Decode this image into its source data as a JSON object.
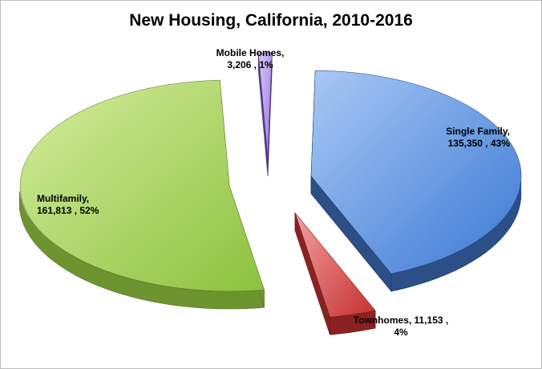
{
  "chart_data": {
    "type": "pie",
    "title": "New Housing, California, 2010-2016",
    "slices": [
      {
        "name": "Single Family",
        "value": 135350,
        "percent": 43,
        "label_lines": [
          "Single Family,",
          "135,350 , 43%"
        ],
        "color": "#6a9be6"
      },
      {
        "name": "Townhomes",
        "value": 11153,
        "percent": 4,
        "label_lines": [
          "Townhomes,  11,153 ,",
          "4%"
        ],
        "color": "#e2625f"
      },
      {
        "name": "Multifamily",
        "value": 161813,
        "percent": 52,
        "label_lines": [
          "Multifamily,",
          "161,813 , 52%"
        ],
        "color": "#a6d45a"
      },
      {
        "name": "Mobile Homes",
        "value": 3206,
        "percent": 1,
        "label_lines": [
          "Mobile Homes,",
          "3,206 , 1%"
        ],
        "color": "#b59ae6"
      }
    ],
    "legend": "none",
    "style": "3d-exploded-pie"
  }
}
